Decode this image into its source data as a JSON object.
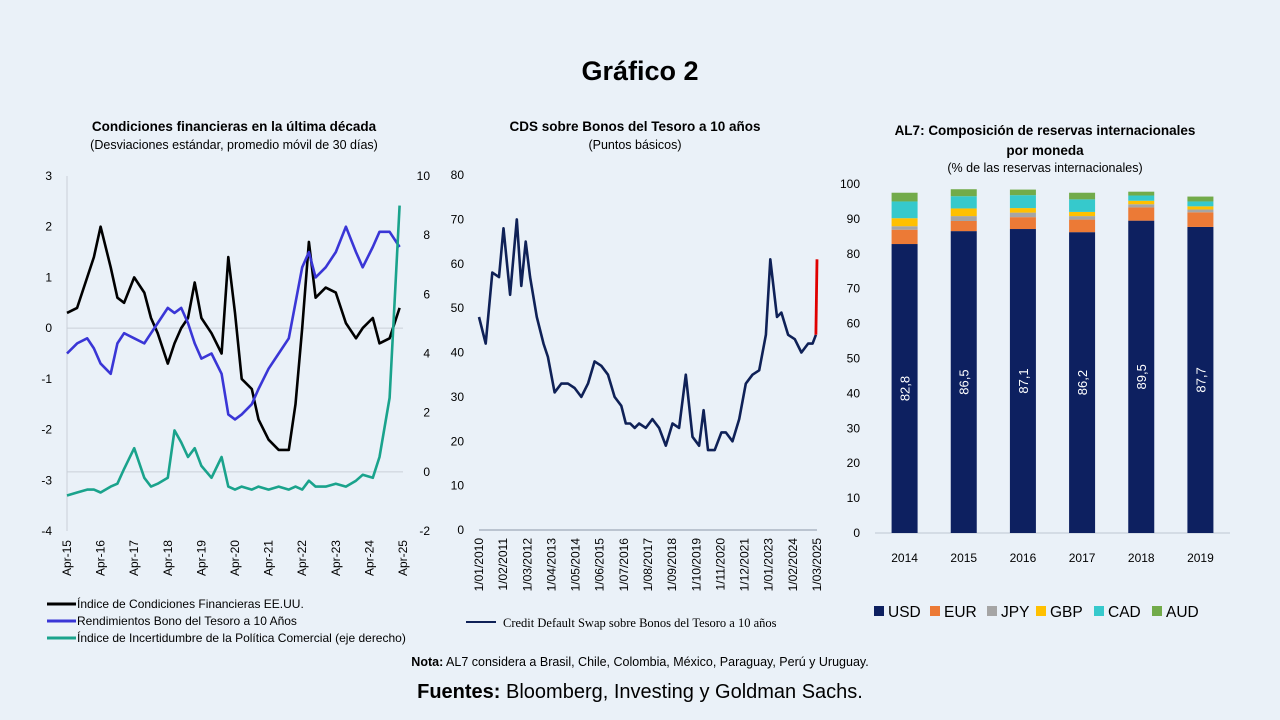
{
  "page": {
    "title": "Gráfico 2",
    "note_label": "Nota:",
    "note_text": "AL7 considera a Brasil, Chile, Colombia, México, Paraguay, Perú y Uruguay.",
    "sources_label": "Fuentes:",
    "sources_text": "Bloomberg, Investing y Goldman Sachs."
  },
  "colors": {
    "background": "#eaf1f8",
    "black_series": "#000000",
    "blue_series": "#3a36d6",
    "teal_series": "#1aa38c",
    "cds_series": "#0f2157",
    "cds_highlight": "#e00000",
    "usd": "#0d2060",
    "eur": "#ec7a36",
    "jpy": "#a5a5a5",
    "gbp": "#ffc000",
    "cad": "#36c9cc",
    "aud": "#72ab4a"
  },
  "chart_data": [
    {
      "type": "line",
      "title": "Condiciones financieras en la última década",
      "subtitle": "(Desviaciones estándar, promedio móvil de 30 días)",
      "x_ticks": [
        "Apr-15",
        "Apr-16",
        "Apr-17",
        "Apr-18",
        "Apr-19",
        "Apr-20",
        "Apr-21",
        "Apr-22",
        "Apr-23",
        "Apr-24",
        "Apr-25"
      ],
      "y_left_ticks": [
        "3",
        "2",
        "1",
        "0",
        "-1",
        "-2",
        "-3",
        "-4"
      ],
      "y_left_lim": [
        -4,
        3
      ],
      "y_right_ticks": [
        "10",
        "8",
        "6",
        "4",
        "2",
        "0",
        "-2"
      ],
      "y_right_lim": [
        -2,
        10
      ],
      "x": [
        2015.3,
        2015.6,
        2015.9,
        2016.1,
        2016.3,
        2016.6,
        2016.8,
        2017.0,
        2017.3,
        2017.6,
        2017.8,
        2018.0,
        2018.3,
        2018.5,
        2018.7,
        2018.9,
        2019.1,
        2019.3,
        2019.6,
        2019.9,
        2020.1,
        2020.3,
        2020.5,
        2020.8,
        2021.0,
        2021.3,
        2021.6,
        2021.9,
        2022.1,
        2022.3,
        2022.5,
        2022.7,
        2023.0,
        2023.3,
        2023.6,
        2023.9,
        2024.1,
        2024.4,
        2024.6,
        2024.9,
        2025.2
      ],
      "series": [
        {
          "name": "Índice de Condiciones Financieras  EE.UU.",
          "axis": "left",
          "values": [
            0.3,
            0.4,
            1.0,
            1.4,
            2.0,
            1.2,
            0.6,
            0.5,
            1.0,
            0.7,
            0.2,
            -0.1,
            -0.7,
            -0.3,
            0.0,
            0.2,
            0.9,
            0.2,
            -0.1,
            -0.5,
            1.4,
            0.3,
            -1.0,
            -1.2,
            -1.8,
            -2.2,
            -2.4,
            -2.4,
            -1.5,
            0.0,
            1.7,
            0.6,
            0.8,
            0.7,
            0.1,
            -0.2,
            0.0,
            0.2,
            -0.3,
            -0.2,
            0.4
          ]
        },
        {
          "name": "Rendimientos Bono del Tesoro a 10 Años",
          "axis": "left",
          "values": [
            -0.5,
            -0.3,
            -0.2,
            -0.4,
            -0.7,
            -0.9,
            -0.3,
            -0.1,
            -0.2,
            -0.3,
            -0.1,
            0.1,
            0.4,
            0.3,
            0.4,
            0.1,
            -0.3,
            -0.6,
            -0.5,
            -0.9,
            -1.7,
            -1.8,
            -1.7,
            -1.5,
            -1.2,
            -0.8,
            -0.5,
            -0.2,
            0.5,
            1.2,
            1.5,
            1.0,
            1.2,
            1.5,
            2.0,
            1.5,
            1.2,
            1.6,
            1.9,
            1.9,
            1.6
          ]
        },
        {
          "name": "Índice de Incertidumbre de la Política Comercial (eje derecho)",
          "axis": "right",
          "values": [
            -0.8,
            -0.7,
            -0.6,
            -0.6,
            -0.7,
            -0.5,
            -0.4,
            0.1,
            0.8,
            -0.2,
            -0.5,
            -0.4,
            -0.2,
            1.4,
            1.0,
            0.5,
            0.8,
            0.2,
            -0.2,
            0.5,
            -0.5,
            -0.6,
            -0.5,
            -0.6,
            -0.5,
            -0.6,
            -0.5,
            -0.6,
            -0.5,
            -0.6,
            -0.3,
            -0.5,
            -0.5,
            -0.4,
            -0.5,
            -0.3,
            -0.1,
            -0.2,
            0.5,
            2.5,
            9.0
          ]
        }
      ]
    },
    {
      "type": "line",
      "title": "CDS sobre Bonos del Tesoro a 10 años",
      "subtitle": "(Puntos básicos)",
      "x_ticks": [
        "1/01/2010",
        "1/02/2011",
        "1/03/2012",
        "1/04/2013",
        "1/05/2014",
        "1/06/2015",
        "1/07/2016",
        "1/08/2017",
        "1/09/2018",
        "1/10/2019",
        "1/11/2020",
        "1/12/2021",
        "1/01/2023",
        "1/02/2024",
        "1/03/2025"
      ],
      "y_ticks": [
        "80",
        "70",
        "60",
        "50",
        "40",
        "30",
        "20",
        "10",
        "0"
      ],
      "ylim": [
        0,
        80
      ],
      "x": [
        2010.0,
        2010.3,
        2010.6,
        2010.9,
        2011.1,
        2011.4,
        2011.7,
        2011.9,
        2012.1,
        2012.3,
        2012.6,
        2012.9,
        2013.1,
        2013.4,
        2013.7,
        2014.0,
        2014.3,
        2014.6,
        2014.9,
        2015.2,
        2015.5,
        2015.8,
        2016.1,
        2016.4,
        2016.6,
        2016.8,
        2017.0,
        2017.2,
        2017.5,
        2017.8,
        2018.1,
        2018.4,
        2018.7,
        2019.0,
        2019.3,
        2019.6,
        2019.9,
        2020.1,
        2020.3,
        2020.6,
        2020.9,
        2021.1,
        2021.4,
        2021.7,
        2022.0,
        2022.3,
        2022.6,
        2022.9,
        2023.1,
        2023.4,
        2023.6,
        2023.9,
        2024.2,
        2024.5,
        2024.8,
        2025.0,
        2025.15,
        2025.2
      ],
      "series": [
        {
          "name": "Credit Default Swap sobre Bonos del Tesoro a 10 años",
          "values": [
            48,
            42,
            58,
            57,
            68,
            53,
            70,
            55,
            65,
            57,
            48,
            42,
            39,
            31,
            33,
            33,
            32,
            30,
            33,
            38,
            37,
            35,
            30,
            28,
            24,
            24,
            23,
            24,
            23,
            25,
            23,
            19,
            24,
            23,
            35,
            21,
            19,
            27,
            18,
            18,
            22,
            22,
            20,
            25,
            33,
            35,
            36,
            44,
            61,
            48,
            49,
            44,
            43,
            40,
            42,
            42,
            44,
            61
          ]
        }
      ]
    },
    {
      "type": "bar",
      "title_line1": "AL7: Composición de reservas internacionales",
      "title_line2": "por moneda",
      "subtitle": "(% de las reservas internacionales)",
      "categories": [
        "2014",
        "2015",
        "2016",
        "2017",
        "2018",
        "2019"
      ],
      "y_ticks": [
        "100",
        "90",
        "80",
        "70",
        "60",
        "50",
        "40",
        "30",
        "20",
        "10",
        "0"
      ],
      "ylim": [
        0,
        100
      ],
      "series": [
        {
          "name": "USD",
          "values": [
            82.8,
            86.5,
            87.1,
            86.2,
            89.5,
            87.7
          ]
        },
        {
          "name": "EUR",
          "values": [
            4.1,
            2.9,
            3.4,
            3.6,
            3.8,
            4.2
          ]
        },
        {
          "name": "JPY",
          "values": [
            1.0,
            1.4,
            1.3,
            1.0,
            0.9,
            0.8
          ]
        },
        {
          "name": "GBP",
          "values": [
            2.3,
            2.2,
            1.3,
            1.2,
            1.0,
            0.9
          ]
        },
        {
          "name": "CAD",
          "values": [
            4.8,
            3.5,
            3.7,
            3.6,
            1.5,
            1.4
          ]
        },
        {
          "name": "AUD",
          "values": [
            2.5,
            2.0,
            1.6,
            1.9,
            1.1,
            1.4
          ]
        }
      ],
      "data_labels": [
        "82,8",
        "86,5",
        "87,1",
        "86,2",
        "89,5",
        "87,7"
      ]
    }
  ]
}
